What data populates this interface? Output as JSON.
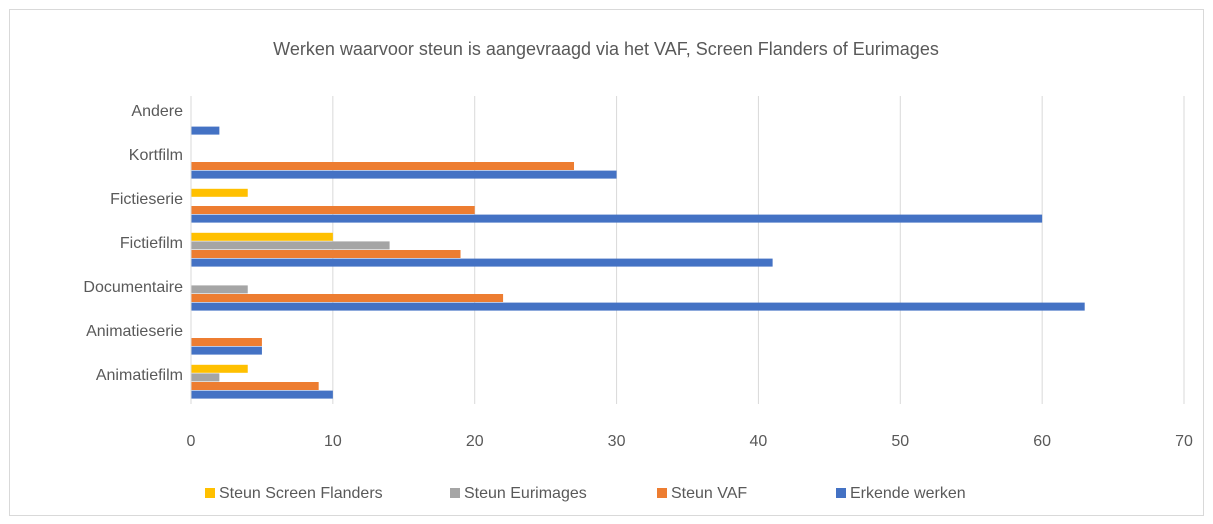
{
  "chart_data": {
    "type": "hbar",
    "title": "Werken waarvoor steun is aangevraagd via het VAF, Screen Flanders of Eurimages",
    "categories": [
      "Animatiefilm",
      "Animatieserie",
      "Documentaire",
      "Fictiefilm",
      "Fictieserie",
      "Kortfilm",
      "Andere"
    ],
    "series": [
      {
        "name": "Steun Screen Flanders",
        "color": "#ffc000",
        "values": [
          4,
          0,
          0,
          10,
          4,
          0,
          0
        ]
      },
      {
        "name": "Steun Eurimages",
        "color": "#a5a5a5",
        "values": [
          2,
          0,
          4,
          14,
          0,
          0,
          0
        ]
      },
      {
        "name": "Steun VAF",
        "color": "#ed7d31",
        "values": [
          9,
          5,
          22,
          19,
          20,
          27,
          0
        ]
      },
      {
        "name": "Erkende werken",
        "color": "#4472c4",
        "values": [
          10,
          5,
          63,
          41,
          60,
          30,
          2
        ]
      }
    ],
    "xlim": [
      0,
      70
    ],
    "xticks": [
      0,
      10,
      20,
      30,
      40,
      50,
      60,
      70
    ],
    "grid": true,
    "legend": "bottom"
  }
}
